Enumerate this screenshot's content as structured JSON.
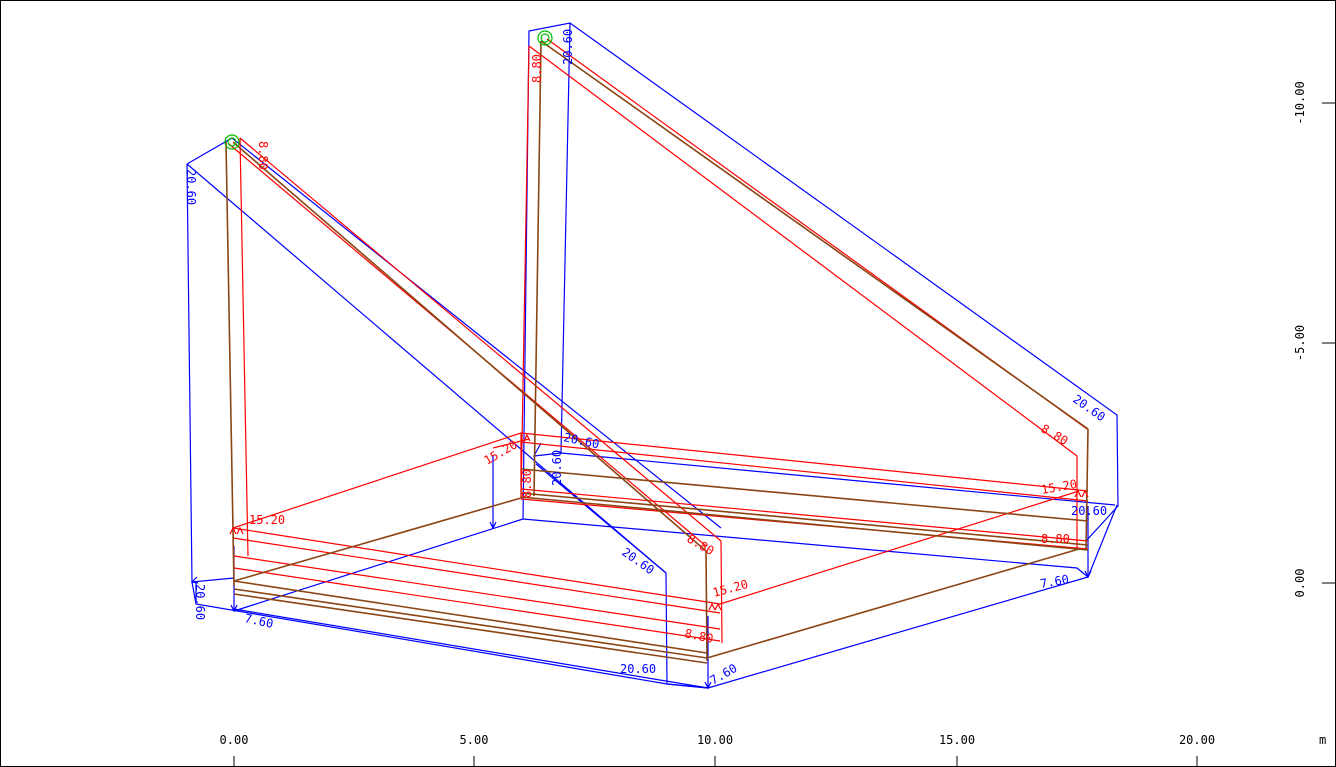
{
  "axes": {
    "unit": "m",
    "x_ticks": [
      "0.00",
      "5.00",
      "10.00",
      "15.00",
      "20.00"
    ],
    "y_ticks": [
      "-10.00",
      "-5.00",
      "0.00"
    ]
  },
  "colors": {
    "frame_outline": "#0000ff",
    "member_outline": "#ff0000",
    "centerline": "#8b4513",
    "support": "#00bb00",
    "axis": "#000000"
  },
  "dimensions": {
    "blue": [
      "20.60",
      "20.60",
      "20.60",
      "20.60",
      "20.60",
      "20.60",
      "20.60",
      "20.60",
      "20.60",
      "7.60",
      "7.60",
      "7.60"
    ],
    "red": [
      "8.80",
      "8.80",
      "8.80",
      "8.80",
      "8.80",
      "8.80",
      "8.80",
      "15.20",
      "15.20",
      "15.20",
      "15.20"
    ]
  }
}
